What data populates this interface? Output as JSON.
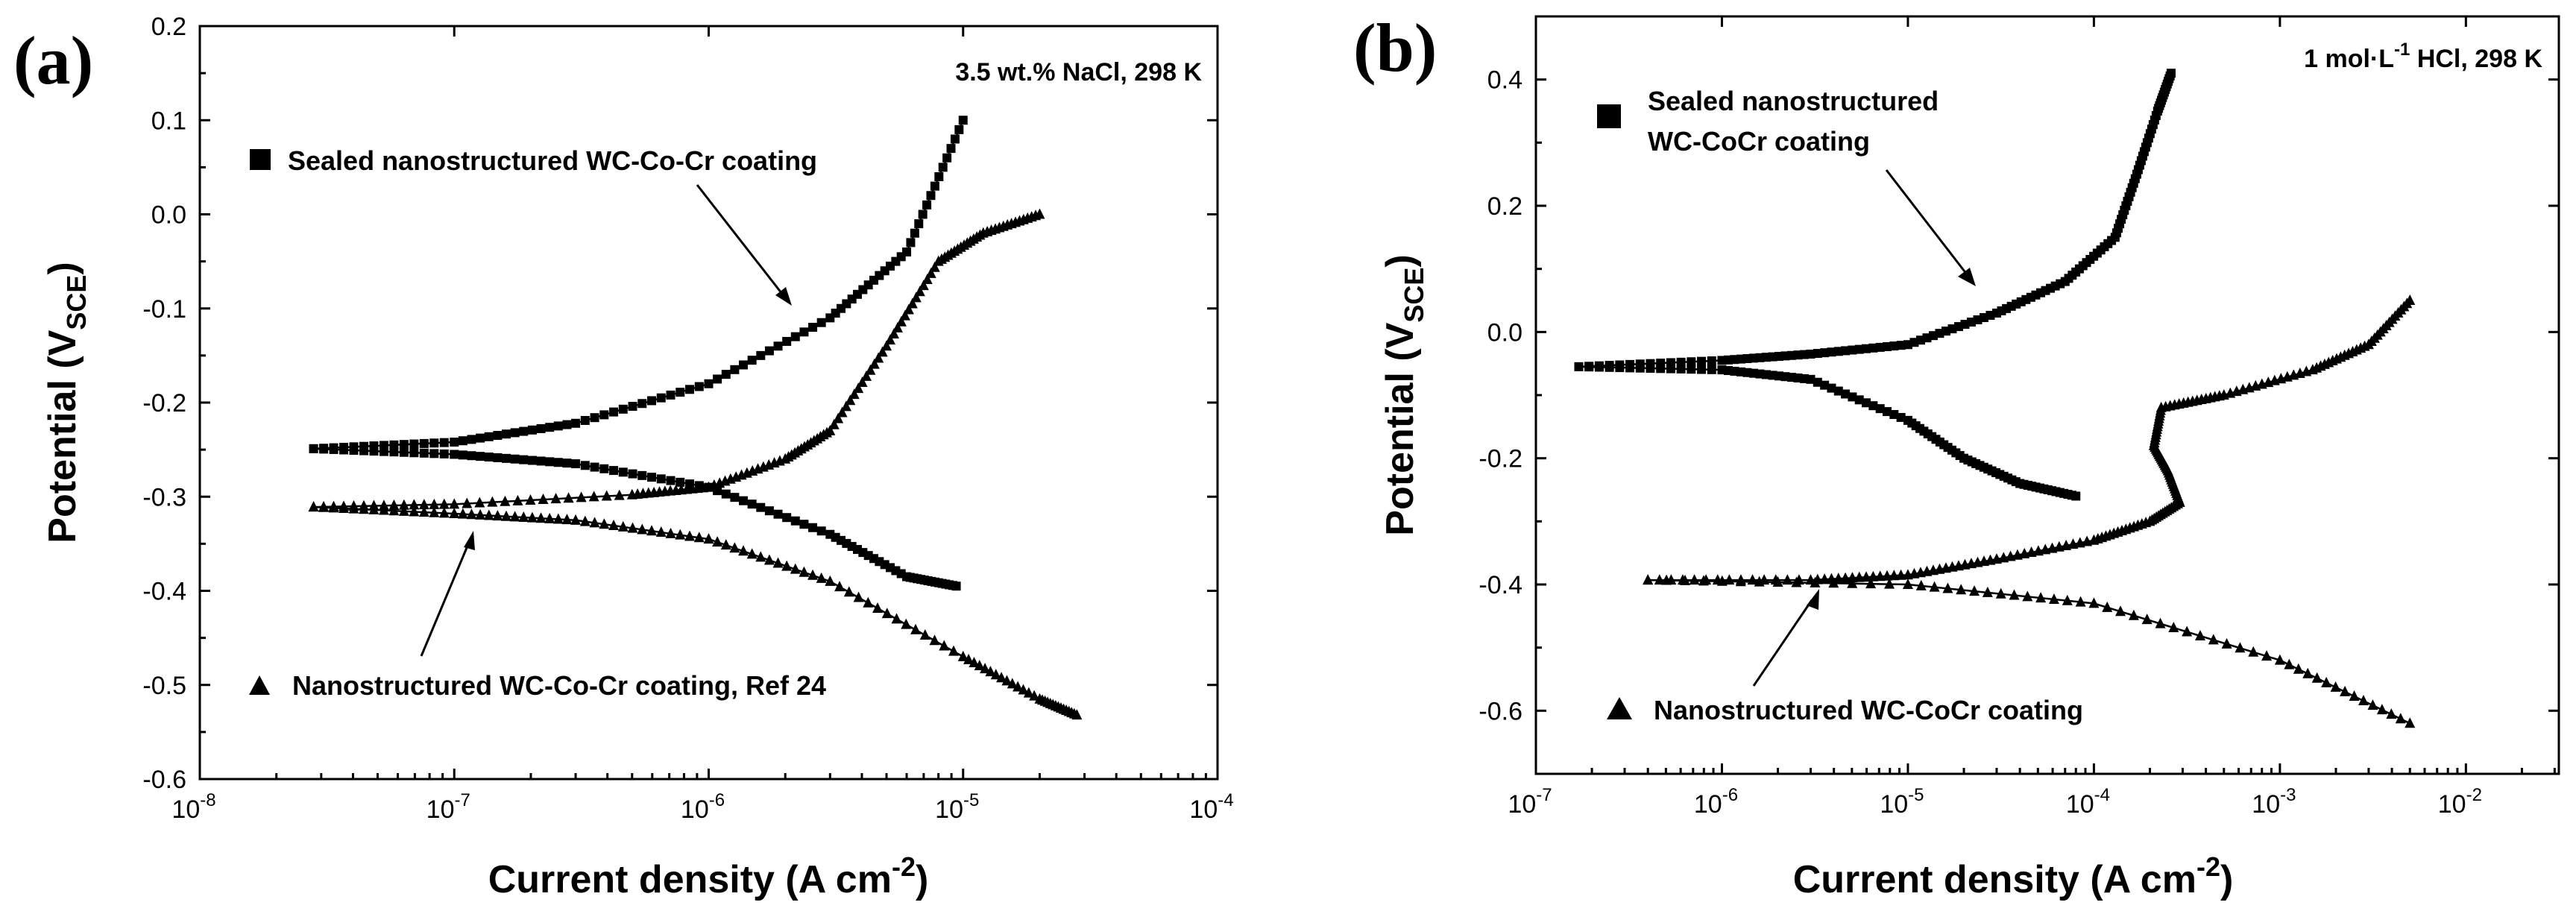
{
  "chart_data": [
    {
      "type": "line",
      "panel_label": "(a)",
      "annotation": "3.5 wt.% NaCl, 298 K",
      "xlabel": "Current density (A cm",
      "xlabel_sup": "-2",
      "xlabel_close": ")",
      "ylabel": "Potential (V",
      "ylabel_sub": "SCE",
      "ylabel_close": ")",
      "xscale": "log",
      "xlim": [
        1e-08,
        0.0001
      ],
      "ylim": [
        -0.6,
        0.2
      ],
      "xticks": [
        {
          "v": 1e-08,
          "base": "10",
          "exp": "-8"
        },
        {
          "v": 1e-07,
          "base": "10",
          "exp": "-7"
        },
        {
          "v": 1e-06,
          "base": "10",
          "exp": "-6"
        },
        {
          "v": 1e-05,
          "base": "10",
          "exp": "-5"
        },
        {
          "v": 0.0001,
          "base": "10",
          "exp": "-4"
        }
      ],
      "yticks": [
        {
          "v": 0.2,
          "label": "0.2"
        },
        {
          "v": 0.1,
          "label": "0.1"
        },
        {
          "v": 0.0,
          "label": "0.0"
        },
        {
          "v": -0.1,
          "label": "-0.1"
        },
        {
          "v": -0.2,
          "label": "-0.2"
        },
        {
          "v": -0.3,
          "label": "-0.3"
        },
        {
          "v": -0.4,
          "label": "-0.4"
        },
        {
          "v": -0.5,
          "label": "-0.5"
        },
        {
          "v": -0.6,
          "label": "-0.6"
        }
      ],
      "series": [
        {
          "name": "Sealed nanostructured WC-Co-Cr coating",
          "marker": "square",
          "anodic": [
            [
              2.8e-08,
              -0.249
            ],
            [
              1e-07,
              -0.242
            ],
            [
              3e-07,
              -0.222
            ],
            [
              1e-06,
              -0.18
            ],
            [
              3e-06,
              -0.11
            ],
            [
              6e-06,
              -0.04
            ],
            [
              1e-05,
              0.1
            ]
          ],
          "cathodic": [
            [
              2.8e-08,
              -0.249
            ],
            [
              1e-07,
              -0.255
            ],
            [
              3e-07,
              -0.265
            ],
            [
              1e-06,
              -0.29
            ],
            [
              3e-06,
              -0.34
            ],
            [
              6e-06,
              -0.385
            ],
            [
              9.4e-06,
              -0.395
            ]
          ]
        },
        {
          "name": "Nanostructured WC-Co-Cr coating, Ref 24",
          "marker": "triangle",
          "anodic": [
            [
              2.8e-08,
              -0.311
            ],
            [
              1e-07,
              -0.308
            ],
            [
              5e-07,
              -0.298
            ],
            [
              1e-06,
              -0.29
            ],
            [
              2e-06,
              -0.26
            ],
            [
              3e-06,
              -0.23
            ],
            [
              5e-06,
              -0.14
            ],
            [
              8e-06,
              -0.05
            ],
            [
              1.2e-05,
              -0.02
            ],
            [
              2e-05,
              0.0
            ]
          ],
          "cathodic": [
            [
              2.8e-08,
              -0.311
            ],
            [
              1e-07,
              -0.318
            ],
            [
              3e-07,
              -0.325
            ],
            [
              1e-06,
              -0.345
            ],
            [
              3e-06,
              -0.39
            ],
            [
              1e-05,
              -0.47
            ],
            [
              2e-05,
              -0.515
            ],
            [
              2.8e-05,
              -0.532
            ]
          ]
        }
      ]
    },
    {
      "type": "line",
      "panel_label": "(b)",
      "annotation": "1 mol·L",
      "annotation_sup": "-1",
      "annotation_tail": " HCl, 298 K",
      "xlabel": "Current density (A cm",
      "xlabel_sup": "-2",
      "xlabel_close": ")",
      "ylabel": "Potential (V",
      "ylabel_sub": "SCE",
      "ylabel_close": ")",
      "xscale": "log",
      "xlim": [
        1e-07,
        0.0316
      ],
      "ylim": [
        -0.7,
        0.5
      ],
      "xticks": [
        {
          "v": 1e-07,
          "base": "10",
          "exp": "-7"
        },
        {
          "v": 1e-06,
          "base": "10",
          "exp": "-6"
        },
        {
          "v": 1e-05,
          "base": "10",
          "exp": "-5"
        },
        {
          "v": 0.0001,
          "base": "10",
          "exp": "-4"
        },
        {
          "v": 0.001,
          "base": "10",
          "exp": "-3"
        },
        {
          "v": 0.01,
          "base": "10",
          "exp": "-2"
        }
      ],
      "yticks": [
        {
          "v": 0.4,
          "label": "0.4"
        },
        {
          "v": 0.2,
          "label": "0.2"
        },
        {
          "v": 0.0,
          "label": "0.0"
        },
        {
          "v": -0.2,
          "label": "-0.2"
        },
        {
          "v": -0.4,
          "label": "-0.4"
        },
        {
          "v": -0.6,
          "label": "-0.6"
        }
      ],
      "series": [
        {
          "name_line1": "Sealed nanostructured",
          "name_line2": "WC-CoCr coating",
          "marker": "square",
          "anodic": [
            [
              1.7e-07,
              -0.055
            ],
            [
              1e-06,
              -0.045
            ],
            [
              3e-06,
              -0.035
            ],
            [
              1e-05,
              -0.02
            ],
            [
              3e-05,
              0.03
            ],
            [
              7e-05,
              0.08
            ],
            [
              0.00013,
              0.15
            ],
            [
              0.00017,
              0.25
            ],
            [
              0.00022,
              0.35
            ],
            [
              0.00026,
              0.41
            ]
          ],
          "cathodic": [
            [
              1.7e-07,
              -0.055
            ],
            [
              1e-06,
              -0.06
            ],
            [
              3e-06,
              -0.075
            ],
            [
              1e-05,
              -0.14
            ],
            [
              2e-05,
              -0.2
            ],
            [
              4e-05,
              -0.24
            ],
            [
              8e-05,
              -0.26
            ]
          ]
        },
        {
          "name": "Nanostructured WC-CoCr coating",
          "marker": "triangle",
          "anodic": [
            [
              4e-07,
              -0.393
            ],
            [
              3e-06,
              -0.393
            ],
            [
              1e-05,
              -0.385
            ],
            [
              3e-05,
              -0.36
            ],
            [
              0.0001,
              -0.33
            ],
            [
              0.0002,
              -0.3
            ],
            [
              0.00029,
              -0.27
            ],
            [
              0.00025,
              -0.22
            ],
            [
              0.00021,
              -0.18
            ],
            [
              0.00023,
              -0.12
            ],
            [
              0.0005,
              -0.1
            ],
            [
              0.0015,
              -0.06
            ],
            [
              0.003,
              -0.02
            ],
            [
              0.005,
              0.05
            ]
          ],
          "cathodic": [
            [
              4e-07,
              -0.393
            ],
            [
              1e-05,
              -0.4
            ],
            [
              0.0001,
              -0.43
            ],
            [
              0.001,
              -0.52
            ],
            [
              0.005,
              -0.62
            ]
          ]
        }
      ]
    }
  ]
}
